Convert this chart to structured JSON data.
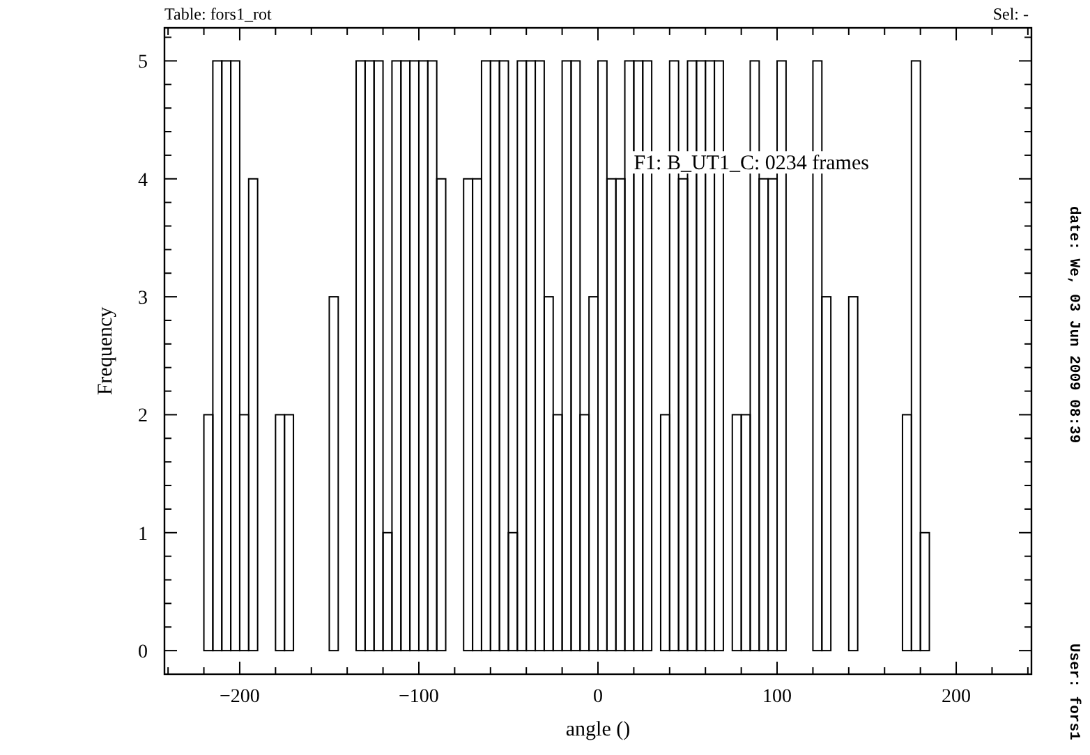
{
  "chart_data": {
    "type": "histogram",
    "xlabel": "angle ()",
    "ylabel": "Frequency",
    "bins": [
      -225,
      -220,
      -215,
      -210,
      -205,
      -200,
      -195,
      -190,
      -185,
      -180,
      -175,
      -170,
      -165,
      -160,
      -155,
      -150,
      -145,
      -140,
      -135,
      -130,
      -125,
      -120,
      -115,
      -110,
      -105,
      -100,
      -95,
      -90,
      -85,
      -80,
      -75,
      -70,
      -65,
      -60,
      -55,
      -50,
      -45,
      -40,
      -35,
      -30,
      -25,
      -20,
      -15,
      -10,
      -5,
      0,
      5,
      10,
      15,
      20,
      25,
      30,
      35,
      40,
      45,
      50,
      55,
      60,
      65,
      70,
      75,
      80,
      85,
      90,
      95,
      100,
      105,
      110,
      115,
      120,
      125,
      130,
      135,
      140,
      145,
      150,
      155,
      160,
      165,
      170,
      175,
      180,
      185,
      190,
      195,
      200,
      205,
      210,
      215,
      220,
      225
    ],
    "values": [
      0,
      2,
      5,
      5,
      5,
      2,
      4,
      0,
      0,
      2,
      2,
      0,
      0,
      0,
      0,
      3,
      0,
      0,
      5,
      5,
      5,
      1,
      5,
      5,
      5,
      5,
      5,
      4,
      0,
      0,
      4,
      4,
      5,
      5,
      5,
      1,
      5,
      5,
      5,
      3,
      2,
      5,
      5,
      2,
      3,
      5,
      4,
      4,
      5,
      5,
      5,
      0,
      2,
      5,
      4,
      5,
      5,
      5,
      5,
      0,
      2,
      2,
      5,
      4,
      4,
      5,
      0,
      0,
      0,
      5,
      3,
      0,
      0,
      3,
      0,
      0,
      0,
      0,
      0,
      2,
      5,
      1,
      0,
      0,
      0,
      0,
      0,
      0,
      0,
      0
    ],
    "color": "#000000",
    "xlim": [
      -242,
      242
    ],
    "xticks": [
      {
        "value": -240,
        "label": null
      },
      {
        "value": -220,
        "label": null
      },
      -200,
      {
        "value": -180,
        "label": null
      },
      {
        "value": -160,
        "label": null
      },
      {
        "value": -140,
        "label": null
      },
      {
        "value": -120,
        "label": null
      },
      -100,
      {
        "value": -80,
        "label": null
      },
      {
        "value": -60,
        "label": null
      },
      {
        "value": -40,
        "label": null
      },
      {
        "value": -20,
        "label": null
      },
      0,
      {
        "value": 20,
        "label": null
      },
      {
        "value": 40,
        "label": null
      },
      {
        "value": 60,
        "label": null
      },
      {
        "value": 80,
        "label": null
      },
      100,
      {
        "value": 120,
        "label": null
      },
      {
        "value": 140,
        "label": null
      },
      {
        "value": 160,
        "label": null
      },
      {
        "value": 180,
        "label": null
      },
      200,
      {
        "value": 220,
        "label": null
      },
      {
        "value": 240,
        "label": null
      }
    ],
    "ylim": [
      -0.2,
      5.28
    ],
    "yticks": [
      0,
      {
        "value": 0.2,
        "label": null
      },
      {
        "value": 0.4,
        "label": null
      },
      {
        "value": 0.6,
        "label": null
      },
      {
        "value": 0.8,
        "label": null
      },
      1,
      {
        "value": 1.2,
        "label": null
      },
      {
        "value": 1.4,
        "label": null
      },
      {
        "value": 1.6,
        "label": null
      },
      {
        "value": 1.8,
        "label": null
      },
      2,
      {
        "value": 2.2,
        "label": null
      },
      {
        "value": 2.4,
        "label": null
      },
      {
        "value": 2.6,
        "label": null
      },
      {
        "value": 2.8,
        "label": null
      },
      3,
      {
        "value": 3.2,
        "label": null
      },
      {
        "value": 3.4,
        "label": null
      },
      {
        "value": 3.6,
        "label": null
      },
      {
        "value": 3.8,
        "label": null
      },
      4,
      {
        "value": 4.2,
        "label": null
      },
      {
        "value": 4.4,
        "label": null
      },
      {
        "value": 4.6,
        "label": null
      },
      {
        "value": 4.8,
        "label": null
      },
      5,
      {
        "value": 5.2,
        "label": null
      }
    ],
    "grid": false,
    "annotations": [
      "Table: fors1_rot",
      "Sel: -",
      "F1: B_UT1_C: 0234 frames",
      "date: We, 03 Jun 2009 08:39",
      "User: fors1"
    ]
  }
}
